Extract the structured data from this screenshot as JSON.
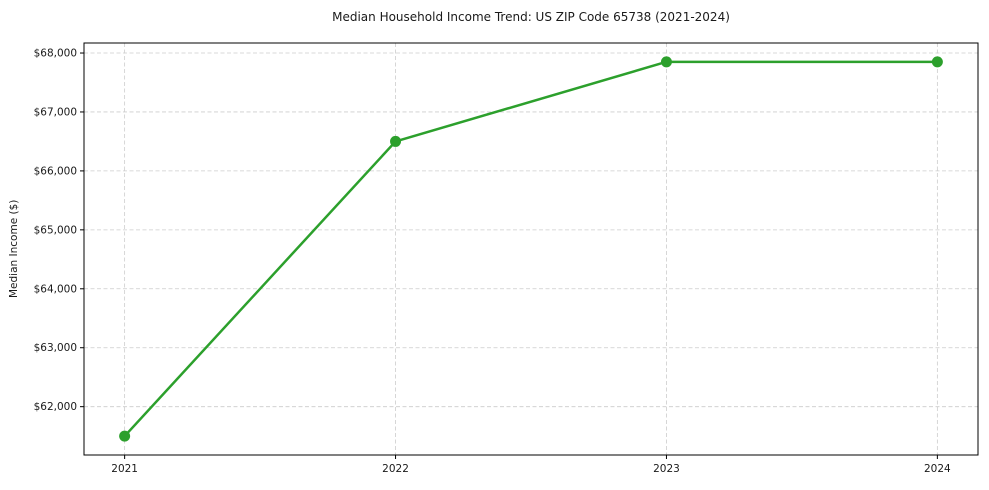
{
  "chart_data": {
    "type": "line",
    "title": "Median Household Income Trend: US ZIP Code 65738 (2021-2024)",
    "xlabel": "",
    "ylabel": "Median Income ($)",
    "x": [
      2021,
      2022,
      2023,
      2024
    ],
    "values": [
      61500,
      66500,
      67850,
      67850
    ],
    "xtick_labels": [
      "2021",
      "2022",
      "2023",
      "2024"
    ],
    "yticks": [
      62000,
      63000,
      64000,
      65000,
      66000,
      67000,
      68000
    ],
    "ytick_labels": [
      "$62,000",
      "$63,000",
      "$64,000",
      "$65,000",
      "$66,000",
      "$67,000",
      "$68,000"
    ],
    "xlim": [
      2020.85,
      2024.15
    ],
    "ylim": [
      61180,
      68170
    ],
    "grid": true,
    "legend_position": "none",
    "line_color": "#2ca02c",
    "marker": "circle",
    "marker_color": "#2ca02c",
    "grid_color": "#cccccc",
    "spine_color": "#000000",
    "text_color": "#1a1a1a",
    "background_color": "#ffffff"
  }
}
